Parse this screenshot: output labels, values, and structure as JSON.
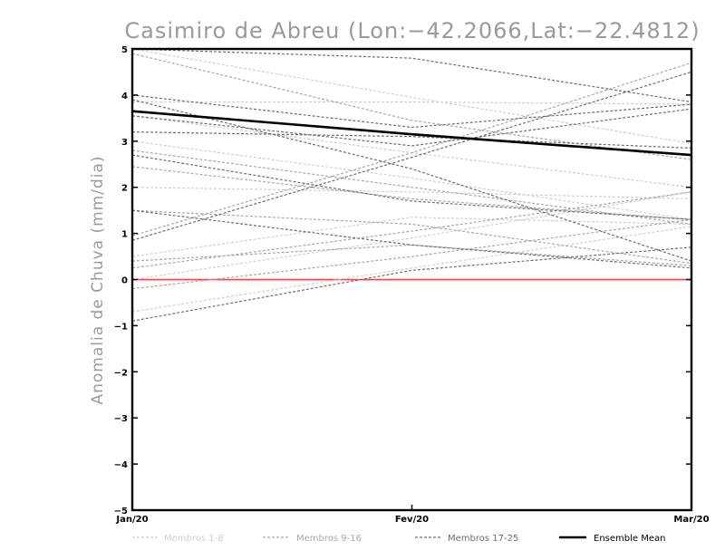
{
  "chart_data": {
    "type": "line",
    "title": "Casimiro de Abreu (Lon:−42.2066,Lat:−22.4812)",
    "ylabel": "Anomalia de Chuva (mm/dia)",
    "xlabel": "",
    "categories": [
      "Jan/20",
      "Fev/20",
      "Mar/20"
    ],
    "ylim": [
      -5,
      5
    ],
    "yticks": [
      "5",
      "4",
      "3",
      "2",
      "1",
      "0",
      "−1",
      "−2",
      "−3",
      "−4",
      "−5"
    ],
    "ytick_values": [
      5,
      4,
      3,
      2,
      1,
      0,
      -1,
      -2,
      -3,
      -4,
      -5
    ],
    "zero_line_color": "#ff4040",
    "groups": [
      {
        "name": "Membros 1-8",
        "color": "#cfcfcf",
        "series": [
          {
            "values": [
              5.0,
              3.95,
              2.95
            ]
          },
          {
            "values": [
              3.85,
              3.85,
              3.8
            ]
          },
          {
            "values": [
              3.0,
              2.2,
              1.3
            ]
          },
          {
            "values": [
              0.5,
              1.35,
              1.2
            ]
          },
          {
            "values": [
              -0.7,
              0.25,
              1.15
            ]
          },
          {
            "values": [
              0.0,
              0.9,
              1.9
            ]
          },
          {
            "values": [
              2.0,
              1.9,
              1.75
            ]
          },
          {
            "values": [
              3.55,
              2.75,
              2.0
            ]
          }
        ]
      },
      {
        "name": "Membros 9-16",
        "color": "#a8a8a8",
        "series": [
          {
            "values": [
              4.9,
              3.45,
              2.6
            ]
          },
          {
            "values": [
              2.45,
              1.75,
              1.3
            ]
          },
          {
            "values": [
              0.95,
              2.75,
              4.7
            ]
          },
          {
            "values": [
              0.4,
              0.75,
              0.3
            ]
          },
          {
            "values": [
              -0.2,
              0.5,
              1.3
            ]
          },
          {
            "values": [
              1.5,
              1.2,
              0.35
            ]
          },
          {
            "values": [
              0.25,
              1.05,
              1.9
            ]
          },
          {
            "values": [
              2.8,
              2.0,
              1.2
            ]
          }
        ]
      },
      {
        "name": "Membros 17-25",
        "color": "#6e6e6e",
        "series": [
          {
            "values": [
              4.0,
              3.3,
              3.8
            ]
          },
          {
            "values": [
              3.55,
              2.9,
              3.7
            ]
          },
          {
            "values": [
              3.2,
              3.1,
              2.85
            ]
          },
          {
            "values": [
              0.85,
              2.65,
              4.5
            ]
          },
          {
            "values": [
              -0.9,
              0.2,
              0.7
            ]
          },
          {
            "values": [
              1.5,
              0.75,
              0.25
            ]
          },
          {
            "values": [
              3.9,
              2.4,
              0.4
            ]
          },
          {
            "values": [
              2.7,
              1.7,
              1.3
            ]
          },
          {
            "values": [
              5.0,
              4.8,
              3.85
            ]
          }
        ]
      }
    ],
    "ensemble_mean": {
      "name": "Ensemble Mean",
      "color": "#000000",
      "values": [
        3.65,
        3.15,
        2.7
      ]
    },
    "legend": {
      "position": "bottom",
      "items": [
        "Membros 1-8",
        "Membros 9-16",
        "Membros 17-25",
        "Ensemble Mean"
      ]
    },
    "grid": false
  }
}
